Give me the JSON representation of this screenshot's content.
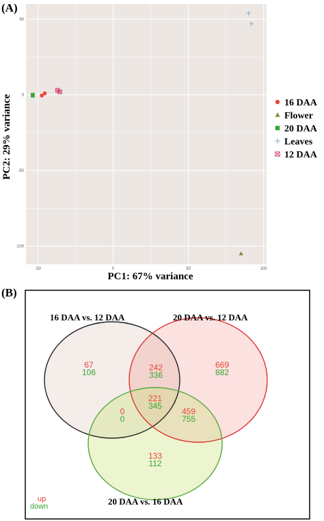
{
  "panel_a_label": "(A)",
  "panel_b_label": "(B)",
  "colors": {
    "panel_bg": "#ede7e4",
    "grid": "#ffffff",
    "red": "#e8463a",
    "green": "#3aa335",
    "olive": "#8f8742",
    "blue": "#8fb7d9",
    "pink": "#d03a6b",
    "venn_black": "#222222",
    "venn_red": "#e0312f",
    "venn_green": "#53a83b"
  },
  "chart_data": [
    {
      "type": "scatter",
      "xlabel": "PC1: 67% variance",
      "ylabel": "PC2: 29% variance",
      "xlim": [
        -58,
        102
      ],
      "ylim": [
        -112,
        60
      ],
      "xticks": [
        -50,
        0,
        50,
        100
      ],
      "xtick_labels": [
        "-50",
        "0",
        "50",
        "100"
      ],
      "yticks": [
        50,
        0,
        -50,
        -100
      ],
      "ytick_labels": [
        "50",
        "0",
        "-50",
        "-100"
      ],
      "grid": true,
      "legend_position": "right",
      "series": [
        {
          "name": "16 DAA",
          "marker": "circle",
          "color": "#e8463a",
          "points": [
            {
              "x": -47.5,
              "y": -0.5
            },
            {
              "x": -45.5,
              "y": 1
            }
          ]
        },
        {
          "name": "Flower",
          "marker": "triangle",
          "color": "#8f8742",
          "points": [
            {
              "x": 85,
              "y": -105
            }
          ]
        },
        {
          "name": "20 DAA",
          "marker": "square",
          "color": "#3aa335",
          "points": [
            {
              "x": -53.5,
              "y": -0.5
            },
            {
              "x": -53.5,
              "y": 0
            }
          ]
        },
        {
          "name": "Leaves",
          "marker": "plus",
          "color": "#8fb7d9",
          "points": [
            {
              "x": 90,
              "y": 54
            },
            {
              "x": 92,
              "y": 47
            }
          ]
        },
        {
          "name": "12 DAA",
          "marker": "boxed-x",
          "color": "#d03a6b",
          "points": [
            {
              "x": -37,
              "y": 3
            },
            {
              "x": -35.5,
              "y": 2
            }
          ]
        }
      ]
    },
    {
      "type": "venn",
      "sets": [
        {
          "name": "16 DAA vs. 12 DAA",
          "color": "#222222"
        },
        {
          "name": "20 DAA vs. 12 DAA",
          "color": "#e0312f"
        },
        {
          "name": "20 DAA vs. 16 DAA",
          "color": "#53a83b"
        }
      ],
      "regions": [
        {
          "sets": [
            "16 DAA vs. 12 DAA"
          ],
          "up": 67,
          "down": 106
        },
        {
          "sets": [
            "16 DAA vs. 12 DAA",
            "20 DAA vs. 12 DAA"
          ],
          "up": 242,
          "down": 336
        },
        {
          "sets": [
            "20 DAA vs. 12 DAA"
          ],
          "up": 669,
          "down": 882
        },
        {
          "sets": [
            "16 DAA vs. 12 DAA",
            "20 DAA vs. 12 DAA",
            "20 DAA vs. 16 DAA"
          ],
          "up": 221,
          "down": 345
        },
        {
          "sets": [
            "16 DAA vs. 12 DAA",
            "20 DAA vs. 16 DAA"
          ],
          "up": 0,
          "down": 0
        },
        {
          "sets": [
            "20 DAA vs. 12 DAA",
            "20 DAA vs. 16 DAA"
          ],
          "up": 459,
          "down": 755
        },
        {
          "sets": [
            "20 DAA vs. 16 DAA"
          ],
          "up": 133,
          "down": 112
        }
      ],
      "key": {
        "up": "up",
        "down": "down"
      }
    }
  ]
}
